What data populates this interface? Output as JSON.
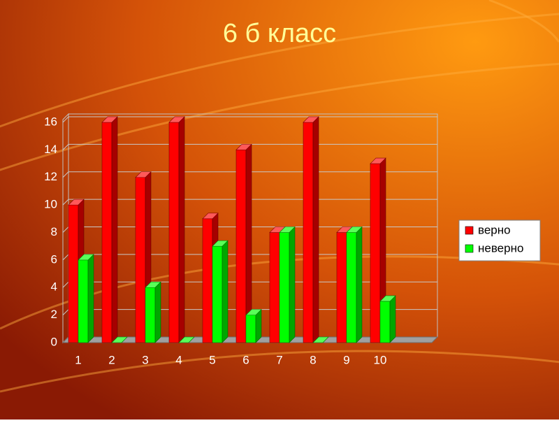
{
  "chart_data": {
    "type": "bar3d",
    "title": "6 б класс",
    "categories": [
      "1",
      "2",
      "3",
      "4",
      "5",
      "6",
      "7",
      "8",
      "9",
      "10"
    ],
    "series": [
      {
        "name": "верно",
        "color": "#ff0000",
        "values": [
          10,
          16,
          12,
          16,
          9,
          14,
          8,
          16,
          8,
          13
        ]
      },
      {
        "name": "неверно",
        "color": "#00ff00",
        "values": [
          6,
          0,
          4,
          0,
          7,
          2,
          8,
          0,
          8,
          3
        ]
      }
    ],
    "ylim": [
      0,
      16
    ],
    "yticks": [
      0,
      2,
      4,
      6,
      8,
      10,
      12,
      14,
      16
    ],
    "grid": true,
    "legend": "right"
  }
}
